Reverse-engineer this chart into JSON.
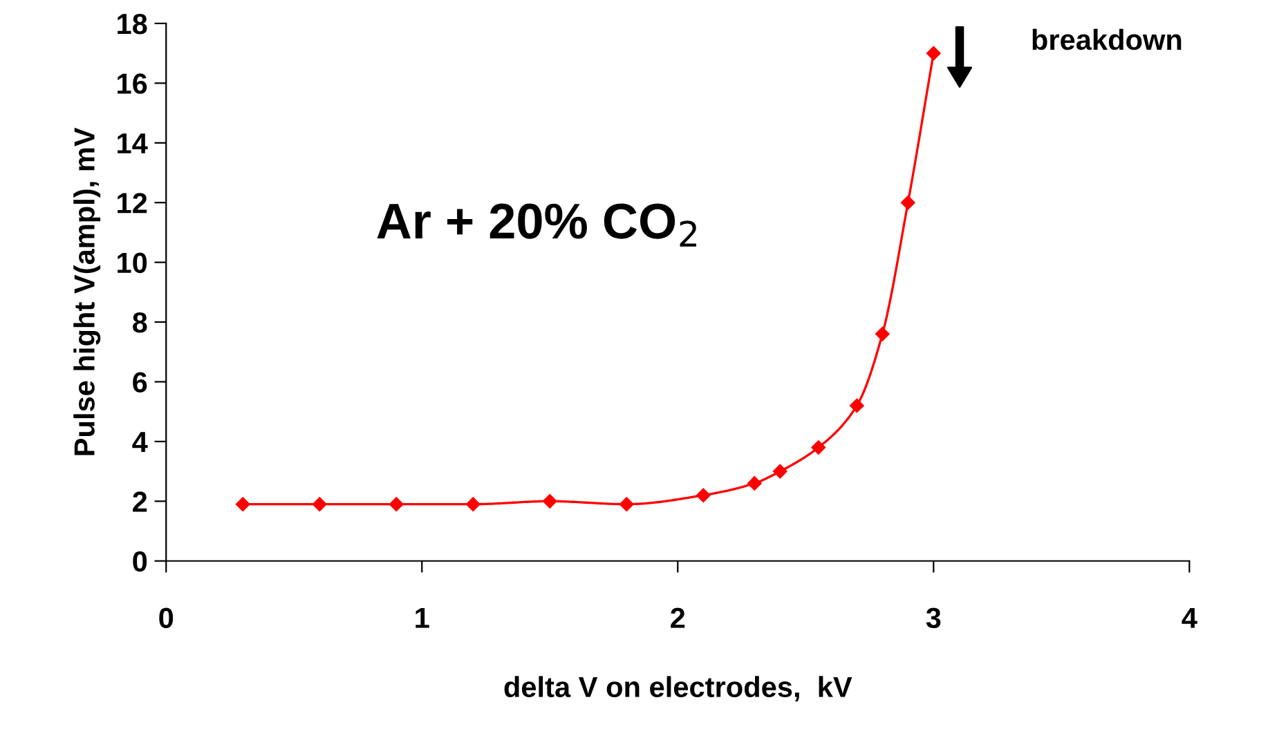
{
  "chart_data": {
    "type": "line",
    "xlabel": "delta V on electrodes,  kV",
    "ylabel": "Pulse hight V(ampl), mV",
    "x": [
      0.3,
      0.6,
      0.9,
      1.2,
      1.5,
      1.8,
      2.1,
      2.3,
      2.4,
      2.55,
      2.7,
      2.8,
      2.9,
      3.0
    ],
    "series": [
      {
        "color": "#ff0000",
        "values": [
          1.9,
          1.9,
          1.9,
          1.9,
          2.0,
          1.9,
          2.2,
          2.6,
          3.0,
          3.8,
          5.2,
          7.6,
          12.0,
          17.0
        ]
      }
    ],
    "xlim": [
      0,
      4
    ],
    "xticks": [
      0,
      1,
      2,
      3,
      4
    ],
    "ylim": [
      0,
      18
    ],
    "yticks": [
      0,
      2,
      4,
      6,
      8,
      10,
      12,
      14,
      16,
      18
    ],
    "marker": "diamond",
    "line_style": "solid",
    "grid": false,
    "legend": false,
    "annotations": [
      "Ar + 20% CO$_{2}$",
      "breakdown"
    ]
  }
}
